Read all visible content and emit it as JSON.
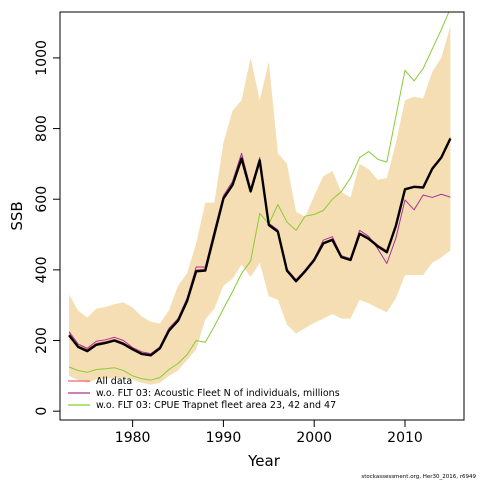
{
  "chart_data": {
    "type": "line",
    "xlabel": "Year",
    "ylabel": "SSB",
    "xlim": [
      1972,
      2016.5
    ],
    "ylim": [
      -25,
      1130
    ],
    "xticks": [
      1980,
      1990,
      2000,
      2010
    ],
    "yticks": [
      0,
      200,
      400,
      600,
      800,
      1000
    ],
    "grid": false,
    "legend_position": "bottom-left",
    "x": [
      1973,
      1974,
      1975,
      1976,
      1977,
      1978,
      1979,
      1980,
      1981,
      1982,
      1983,
      1984,
      1985,
      1986,
      1987,
      1988,
      1989,
      1990,
      1991,
      1992,
      1993,
      1994,
      1995,
      1996,
      1997,
      1998,
      1999,
      2000,
      2001,
      2002,
      2003,
      2004,
      2005,
      2006,
      2007,
      2008,
      2009,
      2010,
      2011,
      2012,
      2013,
      2014,
      2015
    ],
    "band": {
      "lower": [
        100,
        88,
        80,
        90,
        92,
        93,
        95,
        90,
        80,
        75,
        80,
        100,
        115,
        145,
        175,
        260,
        290,
        355,
        375,
        415,
        380,
        420,
        325,
        315,
        245,
        220,
        235,
        250,
        262,
        275,
        262,
        262,
        315,
        305,
        292,
        280,
        320,
        385,
        385,
        385,
        420,
        435,
        455
      ],
      "upper": [
        330,
        285,
        265,
        290,
        295,
        303,
        308,
        293,
        268,
        253,
        248,
        285,
        355,
        390,
        475,
        590,
        590,
        760,
        850,
        880,
        1000,
        880,
        990,
        730,
        700,
        565,
        550,
        610,
        665,
        680,
        620,
        605,
        700,
        685,
        655,
        660,
        760,
        880,
        890,
        885,
        960,
        1000,
        1090
      ]
    },
    "series": [
      {
        "name": "All data",
        "color": "#ee6677",
        "values": [
          220,
          190,
          175,
          192,
          197,
          203,
          194,
          178,
          165,
          160,
          180,
          230,
          258,
          315,
          400,
          402,
          505,
          605,
          645,
          720,
          628,
          715,
          530,
          510,
          400,
          370,
          398,
          430,
          478,
          488,
          438,
          430,
          505,
          492,
          470,
          455,
          530,
          630,
          637,
          636,
          690,
          720,
          775
        ]
      },
      {
        "name": "w.o. FLT 03: Acoustic Fleet   N of individuals, millions",
        "color": "#aa3399",
        "values": [
          225,
          190,
          178,
          198,
          202,
          209,
          200,
          180,
          168,
          163,
          182,
          235,
          262,
          320,
          408,
          408,
          512,
          610,
          650,
          730,
          630,
          718,
          532,
          513,
          402,
          372,
          400,
          432,
          484,
          494,
          440,
          432,
          512,
          495,
          460,
          418,
          490,
          598,
          570,
          612,
          605,
          614,
          606
        ]
      },
      {
        "name": "w.o. FLT 03: CPUE Trapnet fleet area 23, 42 and 47",
        "color": "#88cc33",
        "values": [
          125,
          115,
          110,
          118,
          120,
          123,
          115,
          100,
          92,
          88,
          95,
          118,
          135,
          160,
          200,
          195,
          240,
          290,
          338,
          390,
          425,
          560,
          530,
          585,
          535,
          512,
          552,
          557,
          568,
          600,
          622,
          660,
          718,
          735,
          713,
          705,
          835,
          965,
          935,
          970,
          1025,
          1080,
          1140
        ]
      },
      {
        "name": "",
        "color": "#000000",
        "values": [
          215,
          182,
          170,
          188,
          193,
          200,
          190,
          175,
          162,
          158,
          178,
          228,
          256,
          312,
          396,
          398,
          500,
          602,
          640,
          715,
          622,
          710,
          527,
          508,
          398,
          368,
          396,
          428,
          475,
          485,
          436,
          428,
          502,
          488,
          467,
          450,
          525,
          628,
          635,
          633,
          686,
          718,
          772
        ]
      }
    ]
  },
  "footer_text": "stockassessment.org, Her30_2016, r6949"
}
